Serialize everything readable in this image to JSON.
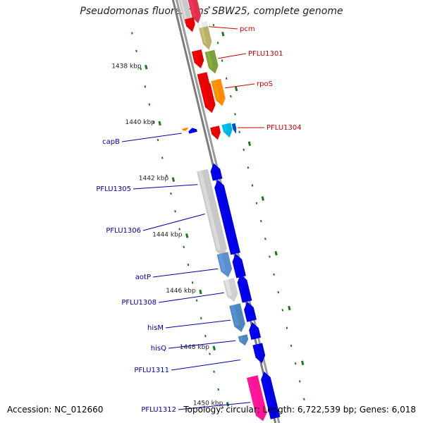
{
  "title": "Pseudomonas fluorescens SBW25, complete genome",
  "footer": {
    "accession": "Accession: NC_012660",
    "stats": "Topology: circular; Length: 6,722,539 bp; Genes: 6,018"
  },
  "colors": {
    "forward_label": "#cc0000",
    "reverse_label": "#0000aa",
    "tick": "#1a7a1a",
    "backbone": "#808080"
  },
  "kbp_labels": [
    "1438 kbp",
    "1440 kbp",
    "1442 kbp",
    "1444 kbp",
    "1446 kbp",
    "1448 kbp",
    "1450 kbp"
  ],
  "gene_labels": {
    "forward": [
      "pcm",
      "PFLU1301",
      "rpoS",
      "PFLU1304"
    ],
    "reverse": [
      "capB",
      "PFLU1305",
      "PFLU1306",
      "aotP",
      "PFLU1308",
      "hisM",
      "hisQ",
      "PFLU1311",
      "PFLU1312"
    ]
  }
}
